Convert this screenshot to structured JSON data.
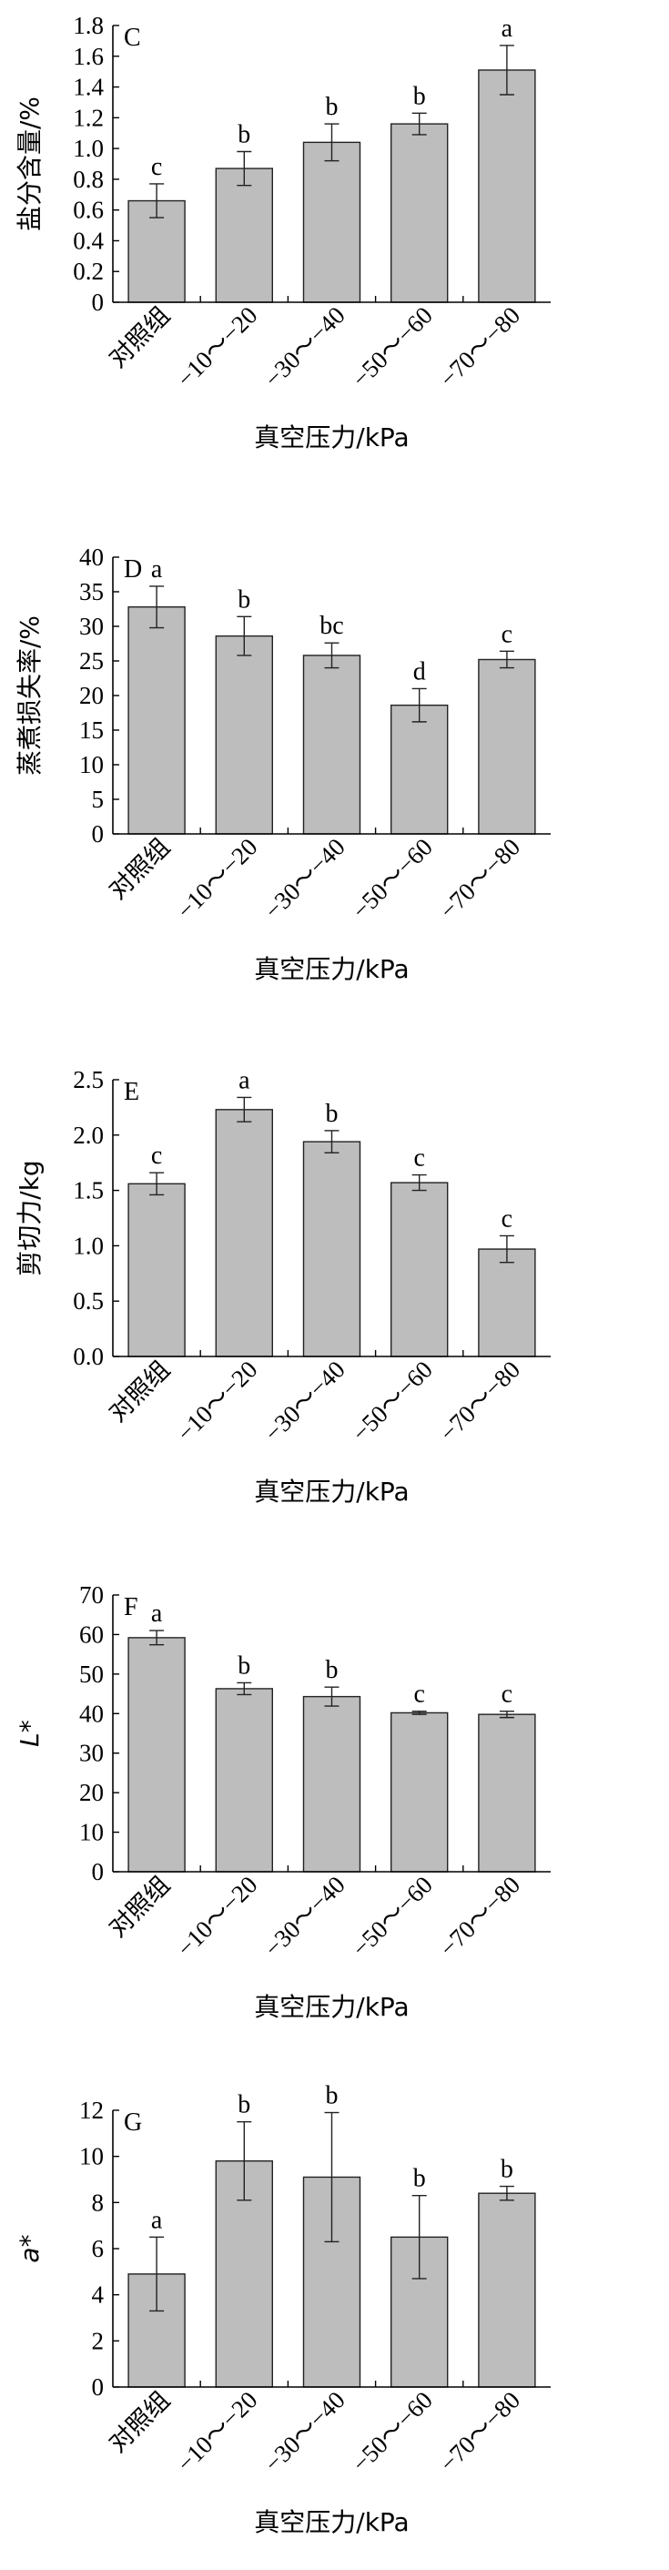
{
  "chart_data": [
    {
      "type": "bar",
      "panel": "C",
      "xlabel": "真空压力/kPa",
      "ylabel": "盐分含量/%",
      "categories": [
        "对照组",
        "−10～−20",
        "−30～−40",
        "−50～−60",
        "−70～−80"
      ],
      "values": [
        0.66,
        0.87,
        1.04,
        1.16,
        1.51
      ],
      "errors": [
        0.11,
        0.11,
        0.12,
        0.07,
        0.16
      ],
      "letters": [
        "c",
        "b",
        "b",
        "b",
        "a"
      ],
      "ylim": [
        0,
        1.8
      ],
      "yticks": [
        "0",
        "0.2",
        "0.4",
        "0.6",
        "0.8",
        "1.0",
        "1.2",
        "1.4",
        "1.6",
        "1.8"
      ],
      "grid": false
    },
    {
      "type": "bar",
      "panel": "D",
      "xlabel": "真空压力/kPa",
      "ylabel": "蒸煮损失率/%",
      "categories": [
        "对照组",
        "−10～−20",
        "−30～−40",
        "−50～−60",
        "−70～−80"
      ],
      "values": [
        32.8,
        28.6,
        25.8,
        18.6,
        25.2
      ],
      "errors": [
        3.0,
        2.8,
        1.8,
        2.4,
        1.2
      ],
      "letters": [
        "a",
        "b",
        "bc",
        "d",
        "c"
      ],
      "ylim": [
        0,
        40
      ],
      "yticks": [
        "0",
        "5",
        "10",
        "15",
        "20",
        "25",
        "30",
        "35",
        "40"
      ],
      "grid": false
    },
    {
      "type": "bar",
      "panel": "E",
      "xlabel": "真空压力/kPa",
      "ylabel": "剪切力/kg",
      "categories": [
        "对照组",
        "−10～−20",
        "−30～−40",
        "−50～−60",
        "−70～−80"
      ],
      "values": [
        1.56,
        2.23,
        1.94,
        1.57,
        0.97
      ],
      "errors": [
        0.1,
        0.11,
        0.1,
        0.07,
        0.12
      ],
      "letters": [
        "c",
        "a",
        "b",
        "c",
        "c"
      ],
      "ylim": [
        0,
        2.5
      ],
      "yticks": [
        "0.0",
        "0.5",
        "1.0",
        "1.5",
        "2.0",
        "2.5"
      ],
      "grid": false
    },
    {
      "type": "bar",
      "panel": "F",
      "xlabel": "真空压力/kPa",
      "ylabel": "L*",
      "categories": [
        "对照组",
        "−10～−20",
        "−30～−40",
        "−50～−60",
        "−70～−80"
      ],
      "values": [
        59.2,
        46.3,
        44.3,
        40.2,
        39.8
      ],
      "errors": [
        1.8,
        1.5,
        2.4,
        0.4,
        0.8
      ],
      "letters": [
        "a",
        "b",
        "b",
        "c",
        "c"
      ],
      "ylim": [
        0,
        70
      ],
      "yticks": [
        "0",
        "10",
        "20",
        "30",
        "40",
        "50",
        "60",
        "70"
      ],
      "grid": false
    },
    {
      "type": "bar",
      "panel": "G",
      "xlabel": "真空压力/kPa",
      "ylabel": "a*",
      "categories": [
        "对照组",
        "−10～−20",
        "−30～−40",
        "−50～−60",
        "−70～−80"
      ],
      "values": [
        4.9,
        9.8,
        9.1,
        6.5,
        8.4
      ],
      "errors": [
        1.6,
        1.7,
        2.8,
        1.8,
        0.3
      ],
      "letters": [
        "a",
        "b",
        "b",
        "b",
        "b"
      ],
      "ylim": [
        0,
        12
      ],
      "yticks": [
        "0",
        "2",
        "4",
        "6",
        "8",
        "10",
        "12"
      ],
      "grid": false
    }
  ]
}
